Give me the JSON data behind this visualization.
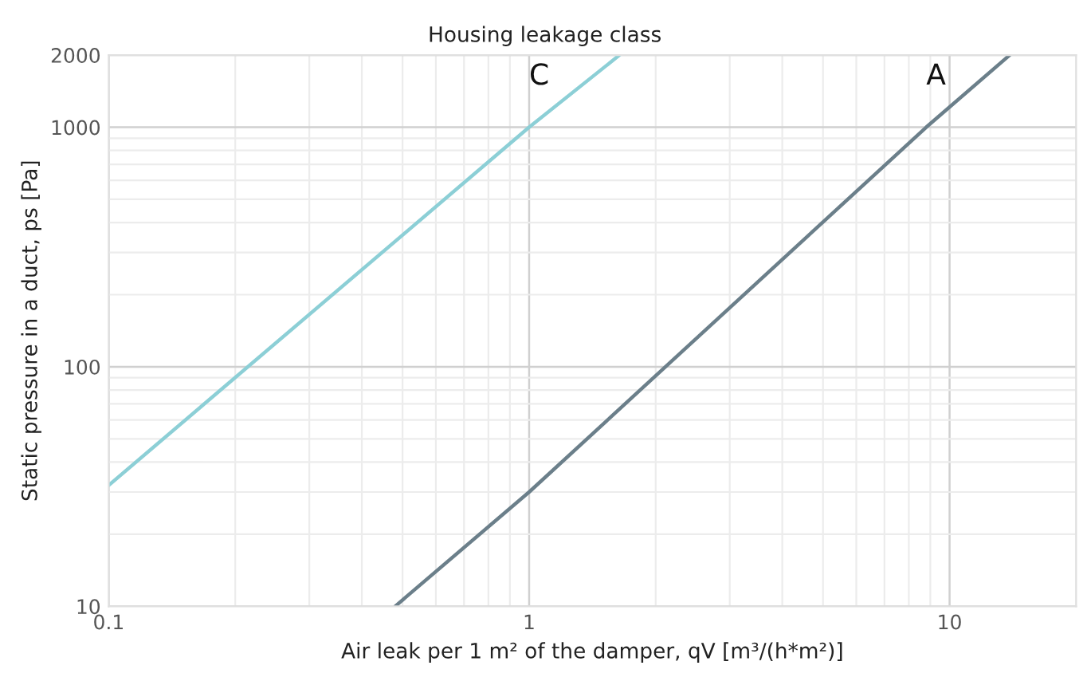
{
  "chart_data": {
    "type": "line",
    "title": "Housing leakage class",
    "xlabel": "Air leak per 1 m² of the damper, qV [m³/(h*m²)]",
    "ylabel": "Static pressure in a duct, ps [Pa]",
    "series": [
      {
        "name": "C",
        "color": "#8ccfd6",
        "x": [
          0.1,
          1,
          1.64
        ],
        "values": [
          32,
          1000,
          2000
        ]
      },
      {
        "name": "A",
        "color": "#6b7f8a",
        "x": [
          0.48,
          1,
          8.8,
          13.9
        ],
        "values": [
          10,
          30,
          1000,
          2000
        ]
      }
    ],
    "log": "xy",
    "xlim": [
      0.1,
      20
    ],
    "ylim": [
      10,
      2000
    ],
    "xticks": [
      0.1,
      1,
      10
    ],
    "yticks": [
      10,
      100,
      1000,
      2000
    ],
    "grid": true,
    "legend": false,
    "marker": "none",
    "line_style": "solid"
  }
}
